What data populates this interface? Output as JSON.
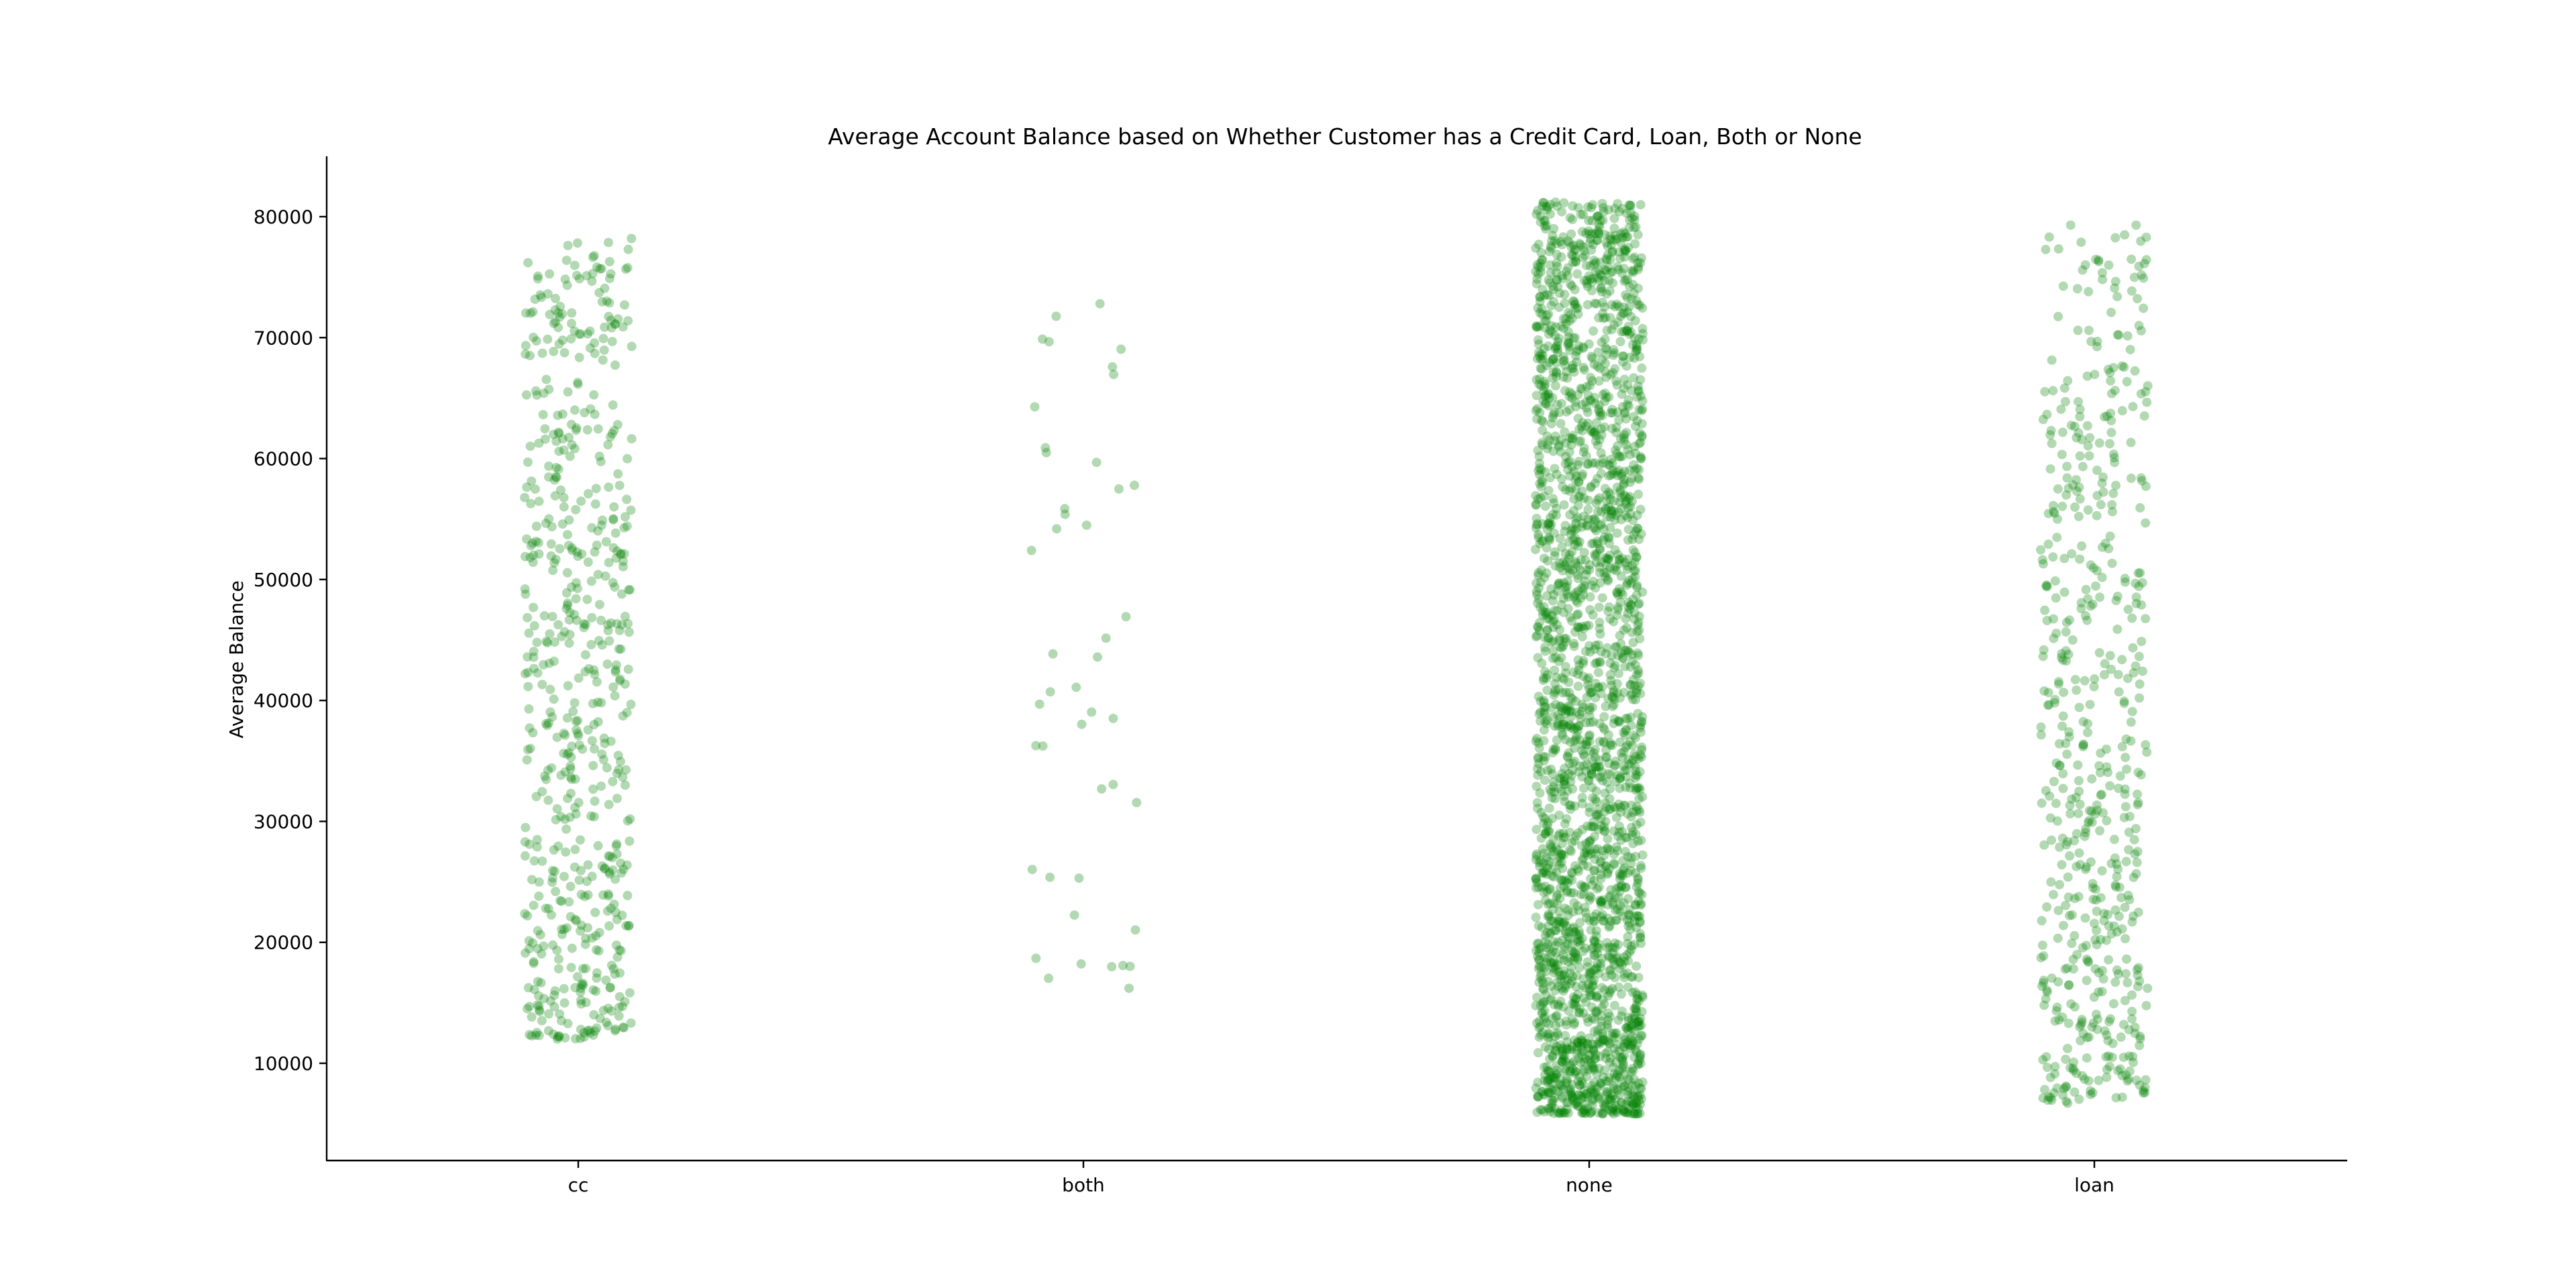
{
  "chart_data": {
    "type": "scatter",
    "title": "Average Account Balance based on Whether Customer has a Credit Card, Loan, Both or None",
    "xlabel": "",
    "ylabel": "Average Balance",
    "categories": [
      "cc",
      "both",
      "none",
      "loan"
    ],
    "yticks": [
      10000,
      20000,
      30000,
      40000,
      50000,
      60000,
      70000,
      80000
    ],
    "ytick_labels": [
      "10000",
      "20000",
      "30000",
      "40000",
      "50000",
      "60000",
      "70000",
      "80000"
    ],
    "ylim": [
      2000,
      85000
    ],
    "grid": false,
    "marker_color": "#008000",
    "marker_alpha": 0.3,
    "groups": [
      {
        "category": "cc",
        "count": 600,
        "min": 12000,
        "max": 78200
      },
      {
        "category": "both",
        "count": 45,
        "min": 16200,
        "max": 72800
      },
      {
        "category": "none",
        "count": 2500,
        "min": 5800,
        "max": 81200
      },
      {
        "category": "loan",
        "count": 560,
        "min": 6700,
        "max": 79300
      }
    ]
  }
}
